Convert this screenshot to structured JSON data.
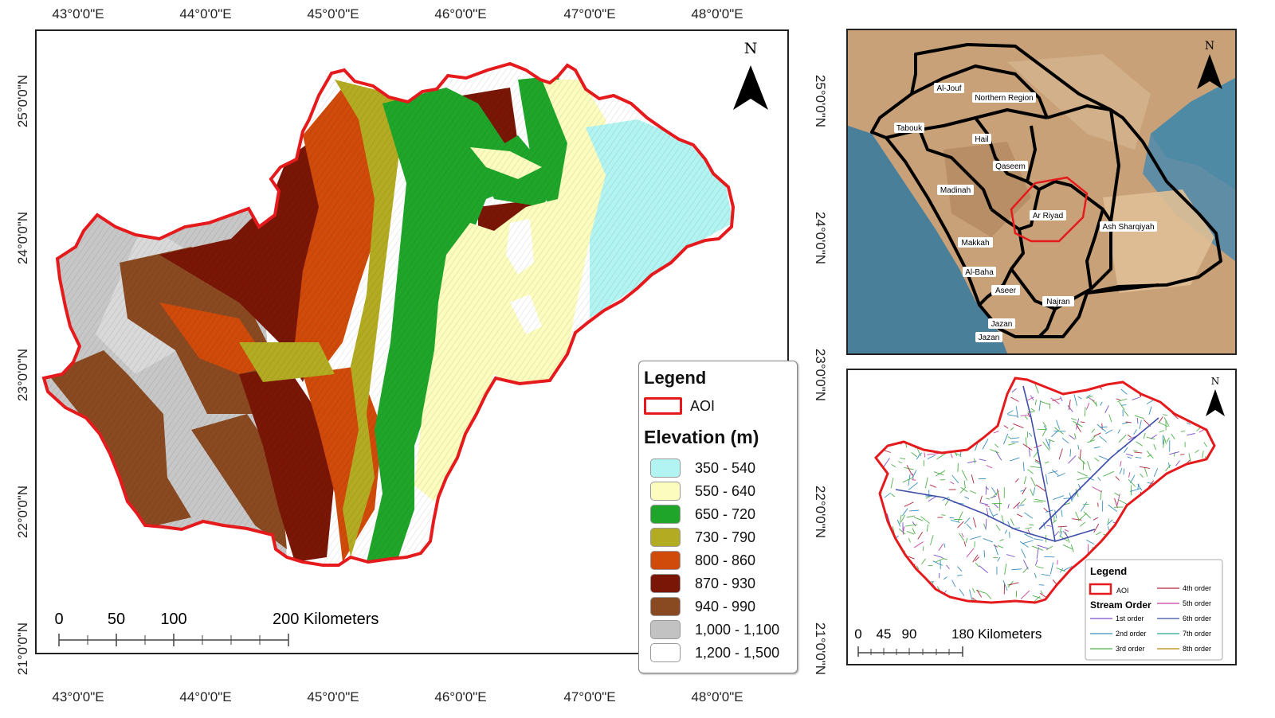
{
  "main_map": {
    "lon_labels": [
      "43°0'0\"E",
      "44°0'0\"E",
      "45°0'0\"E",
      "46°0'0\"E",
      "47°0'0\"E",
      "48°0'0\"E"
    ],
    "lat_labels": [
      "25°0'0\"N",
      "24°0'0\"N",
      "23°0'0\"N",
      "22°0'0\"N",
      "21°0'0\"N"
    ],
    "north_label": "N",
    "scale_labels": [
      "0",
      "50",
      "100",
      "200 Kilometers"
    ],
    "legend": {
      "title": "Legend",
      "aoi_label": "AOI",
      "aoi_color": "#e41a1c",
      "elevation_title": "Elevation (m)",
      "classes": [
        {
          "label": "350 - 540",
          "color": "#b2f4f1"
        },
        {
          "label": "550 - 640",
          "color": "#fcfcbe"
        },
        {
          "label": "650 - 720",
          "color": "#1fa62a"
        },
        {
          "label": "730 - 790",
          "color": "#b3ac22"
        },
        {
          "label": "800 - 860",
          "color": "#d04a0a"
        },
        {
          "label": "870 - 930",
          "color": "#7a1606"
        },
        {
          "label": "940 - 990",
          "color": "#8a4a21"
        },
        {
          "label": "1,000 - 1,100",
          "color": "#c2c2c2"
        },
        {
          "label": "1,200 - 1,500",
          "color": "#ffffff"
        }
      ]
    }
  },
  "inset_saudi": {
    "north_label": "N",
    "regions": [
      "Al-Jouf",
      "Northern Region",
      "Tabouk",
      "Hail",
      "Qaseem",
      "Madinah",
      "Ar Riyad",
      "Ash Sharqiyah",
      "Makkah",
      "Al-Baha",
      "Aseer",
      "Najran",
      "Jazan",
      "Jazan"
    ]
  },
  "inset_streams": {
    "north_label": "N",
    "scale_labels": [
      "0",
      "45",
      "90",
      "180 Kilometers"
    ],
    "legend": {
      "title": "Legend",
      "aoi_label": "AOI",
      "stream_order_title": "Stream Order",
      "orders": [
        {
          "label": "1st order",
          "color": "#7b4fc9"
        },
        {
          "label": "2nd order",
          "color": "#3a8fbf"
        },
        {
          "label": "3rd order",
          "color": "#4fb04a"
        },
        {
          "label": "4th order",
          "color": "#b0243c"
        },
        {
          "label": "5th order",
          "color": "#c43fa0"
        },
        {
          "label": "6th order",
          "color": "#3f4ea8"
        },
        {
          "label": "7th order",
          "color": "#2ea88a"
        },
        {
          "label": "8th order",
          "color": "#b8860b"
        }
      ]
    }
  }
}
